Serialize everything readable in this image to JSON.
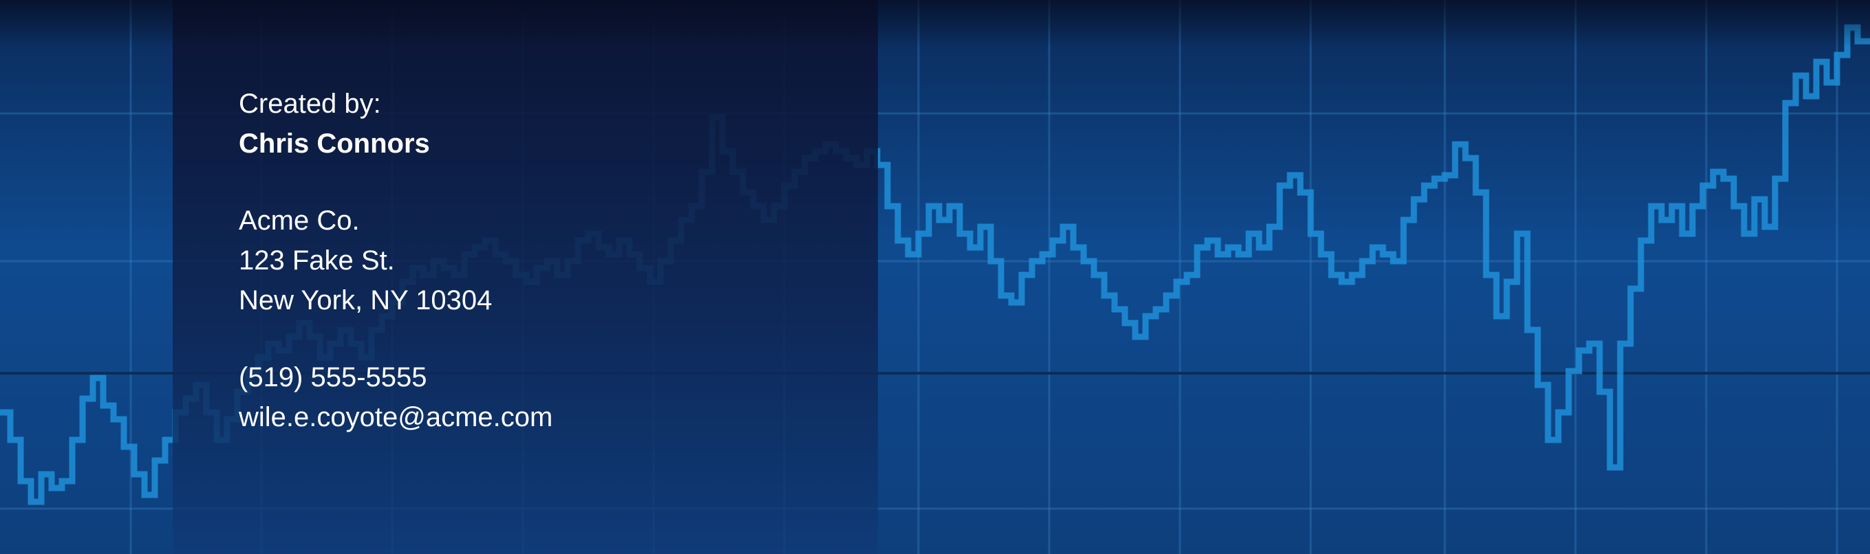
{
  "banner": {
    "created_label": "Created by:",
    "name": "Chris Connors",
    "company": "Acme Co.",
    "street": "123 Fake St.",
    "city": "New York, NY 10304",
    "phone": "(519) 555-5555",
    "email": "wile.e.coyote@acme.com"
  },
  "colors": {
    "background": "#0f4a8f",
    "panel": "#0e2250",
    "chart_line": "#1f8fd6",
    "grid": "#2a73b8",
    "text": "#ffffff"
  }
}
